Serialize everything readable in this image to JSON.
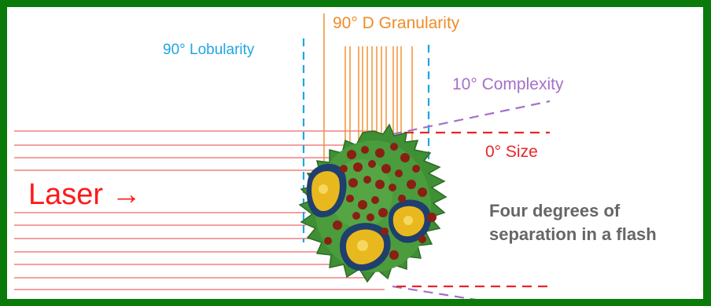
{
  "labels": {
    "lobularity": "90° Lobularity",
    "granularity": "90° D Granularity",
    "complexity": "10° Complexity",
    "size": "0° Size",
    "laser": "Laser →"
  },
  "tagline": {
    "line1": "Four degrees of",
    "line2": "separation in a flash"
  },
  "colors": {
    "frame": "#0a7a0a",
    "laser_lines": "#f08080",
    "lobularity": "#1ea6e0",
    "granularity": "#f08c28",
    "complexity": "#a570c8",
    "size": "#e8252a",
    "laser_text": "#ff1a1a",
    "tagline": "#666666",
    "cell_body": "#3f8f35",
    "nucleus": "#e8b81e",
    "granule": "#8a1f14"
  },
  "icons": {
    "cell": "granulocyte-cell-icon"
  }
}
